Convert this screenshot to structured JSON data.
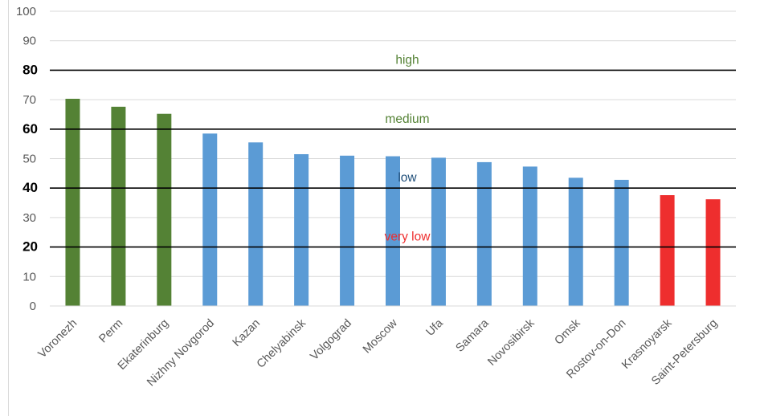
{
  "chart_data": {
    "type": "bar",
    "categories": [
      "Voronezh",
      "Perm",
      "Ekaterinburg",
      "Nizhny Novgorod",
      "Kazan",
      "Chelyabinsk",
      "Volgograd",
      "Moscow",
      "Ufa",
      "Samara",
      "Novosibirsk",
      "Omsk",
      "Rostov-on-Don",
      "Krasnoyarsk",
      "Saint-Petersburg"
    ],
    "values": [
      70.3,
      67.6,
      65.2,
      58.5,
      55.5,
      51.5,
      51.0,
      50.8,
      50.3,
      48.8,
      47.3,
      43.5,
      42.8,
      37.6,
      36.2
    ],
    "bar_colors": [
      "#548235",
      "#548235",
      "#548235",
      "#5b9bd5",
      "#5b9bd5",
      "#5b9bd5",
      "#5b9bd5",
      "#5b9bd5",
      "#5b9bd5",
      "#5b9bd5",
      "#5b9bd5",
      "#5b9bd5",
      "#5b9bd5",
      "#ee2e2e",
      "#ee2e2e"
    ],
    "ylim": [
      0,
      100
    ],
    "yticks": [
      0,
      10,
      20,
      30,
      40,
      50,
      60,
      70,
      80,
      90,
      100
    ],
    "emphasized_ticks": [
      20,
      40,
      60,
      80
    ],
    "grid": true,
    "thresholds": [
      {
        "value": 80,
        "label": "high",
        "color": "#548235"
      },
      {
        "value": 60,
        "label": "medium",
        "color": "#548235"
      },
      {
        "value": 40,
        "label": "low",
        "color": "#1f4e79"
      },
      {
        "value": 20,
        "label": "very low",
        "color": "#ee2e2e"
      }
    ]
  }
}
